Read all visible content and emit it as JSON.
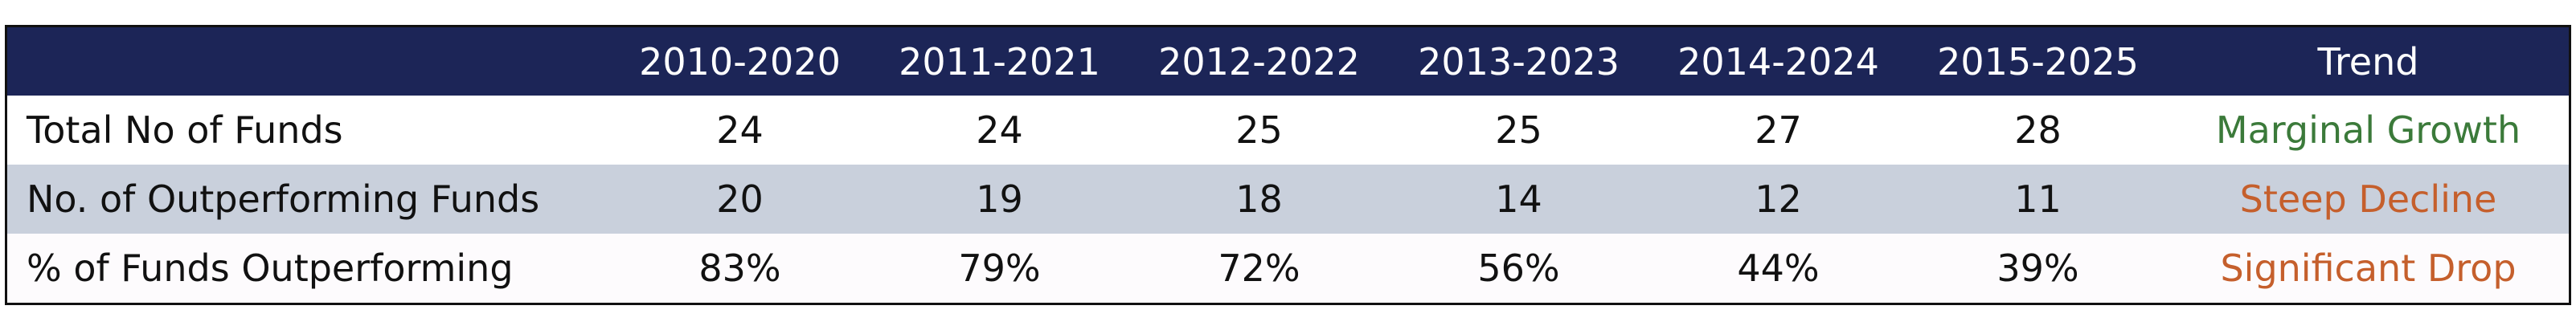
{
  "table": {
    "columns": [
      "2010-2020",
      "2011-2021",
      "2012-2022",
      "2013-2023",
      "2014-2024",
      "2015-2025",
      "Trend"
    ],
    "rows": [
      {
        "label": "Total No of Funds",
        "values": [
          "24",
          "24",
          "25",
          "25",
          "27",
          "28"
        ],
        "trend": "Marginal Growth",
        "trend_color": "#3b7a3a"
      },
      {
        "label": "No. of Outperforming Funds",
        "values": [
          "20",
          "19",
          "18",
          "14",
          "12",
          "11"
        ],
        "trend": "Steep Decline",
        "trend_color": "#c55f2c"
      },
      {
        "label": "% of Funds Outperforming",
        "values": [
          "83%",
          "79%",
          "72%",
          "56%",
          "44%",
          "39%"
        ],
        "trend": "Significant Drop",
        "trend_color": "#c55f2c"
      }
    ]
  }
}
